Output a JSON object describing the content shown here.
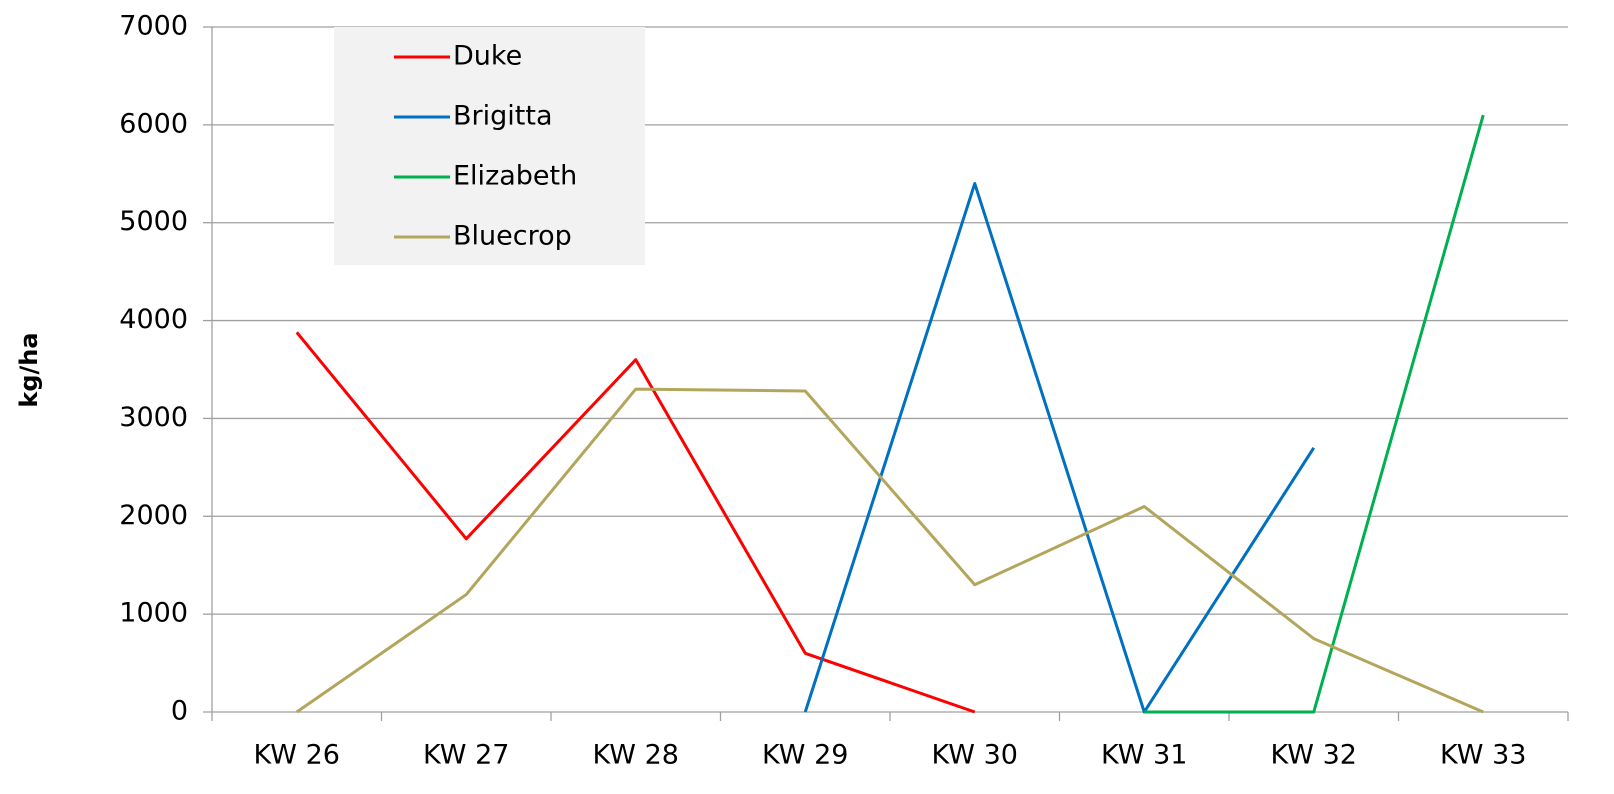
{
  "chart_data": {
    "type": "line",
    "y_label": "kg/ha",
    "categories": [
      "KW 26",
      "KW 27",
      "KW 28",
      "KW 29",
      "KW 30",
      "KW 31",
      "KW 32",
      "KW 33"
    ],
    "series": [
      {
        "name": "Duke",
        "color": "#ff0000",
        "values": [
          3880,
          1770,
          3600,
          600,
          0,
          null,
          null,
          null
        ]
      },
      {
        "name": "Brigitta",
        "color": "#0070c0",
        "values": [
          null,
          null,
          null,
          0,
          5400,
          0,
          2700,
          null
        ]
      },
      {
        "name": "Elizabeth",
        "color": "#00b050",
        "values": [
          null,
          null,
          null,
          null,
          null,
          0,
          0,
          6100
        ]
      },
      {
        "name": "Bluecrop",
        "color": "#b3a65c",
        "values": [
          0,
          1200,
          3300,
          3280,
          1300,
          2100,
          750,
          0
        ]
      }
    ],
    "ylim": [
      0,
      7000
    ],
    "yticks": [
      0,
      1000,
      2000,
      3000,
      4000,
      5000,
      6000,
      7000
    ],
    "grid": true,
    "legend": "upper left"
  }
}
